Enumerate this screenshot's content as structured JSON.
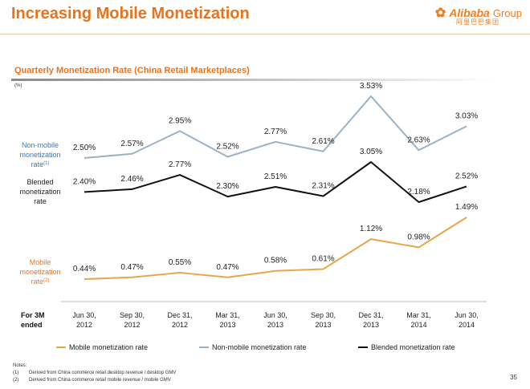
{
  "header": {
    "title": "Increasing Mobile Monetization",
    "logo_name": "Alibaba",
    "logo_group": "Group",
    "logo_cn": "阿里巴巴集团"
  },
  "chart_data": {
    "type": "line",
    "title": "Quarterly Monetization Rate (China Retail Marketplaces)",
    "unit": "(%)",
    "x_axis_label": "For 3M ended",
    "categories": [
      "Jun 30, 2012",
      "Sep 30, 2012",
      "Dec 31, 2012",
      "Mar 31, 2013",
      "Jun 30, 2013",
      "Sep 30, 2013",
      "Dec 31, 2013",
      "Mar 31, 2014",
      "Jun 30, 2014"
    ],
    "series": [
      {
        "name": "Non-mobile monetization rate",
        "side_label": "Non-mobile monetization rate",
        "footnote": "(1)",
        "color": "#9bb1c6",
        "label_color": "#3b78b5",
        "values": [
          2.5,
          2.57,
          2.95,
          2.52,
          2.77,
          2.61,
          3.53,
          2.63,
          3.03
        ],
        "labels": [
          "2.50%",
          "2.57%",
          "2.95%",
          "2.52%",
          "2.77%",
          "2.61%",
          "3.53%",
          "2.63%",
          "3.03%"
        ]
      },
      {
        "name": "Blended monetization rate",
        "side_label": "Blended monetization rate",
        "footnote": "",
        "color": "#111111",
        "label_color": "#222222",
        "values": [
          2.4,
          2.46,
          2.77,
          2.3,
          2.51,
          2.31,
          3.05,
          2.18,
          2.52
        ],
        "labels": [
          "2.40%",
          "2.46%",
          "2.77%",
          "2.30%",
          "2.51%",
          "2.31%",
          "3.05%",
          "2.18%",
          "2.52%"
        ]
      },
      {
        "name": "Mobile monetization rate",
        "side_label": "Mobile monetization rate",
        "footnote": "(2)",
        "color": "#e8a64a",
        "label_color": "#e8731c",
        "values": [
          0.44,
          0.47,
          0.55,
          0.47,
          0.58,
          0.61,
          1.12,
          0.98,
          1.49
        ],
        "labels": [
          "0.44%",
          "0.47%",
          "0.55%",
          "0.47%",
          "0.58%",
          "0.61%",
          "1.12%",
          "0.98%",
          "1.49%"
        ]
      }
    ],
    "legend": {
      "placement": "bottom",
      "items": [
        "Mobile monetization rate",
        "Non-mobile monetization rate",
        "Blended monetization rate"
      ]
    }
  },
  "notes": {
    "heading": "Notes:",
    "items": [
      {
        "num": "(1)",
        "text": "Derived from China commerce retail desktop revenue / desktop GMV"
      },
      {
        "num": "(2)",
        "text": "Derived from China commerce retail mobile revenue / mobile GMV"
      }
    ]
  },
  "page_number": "35"
}
